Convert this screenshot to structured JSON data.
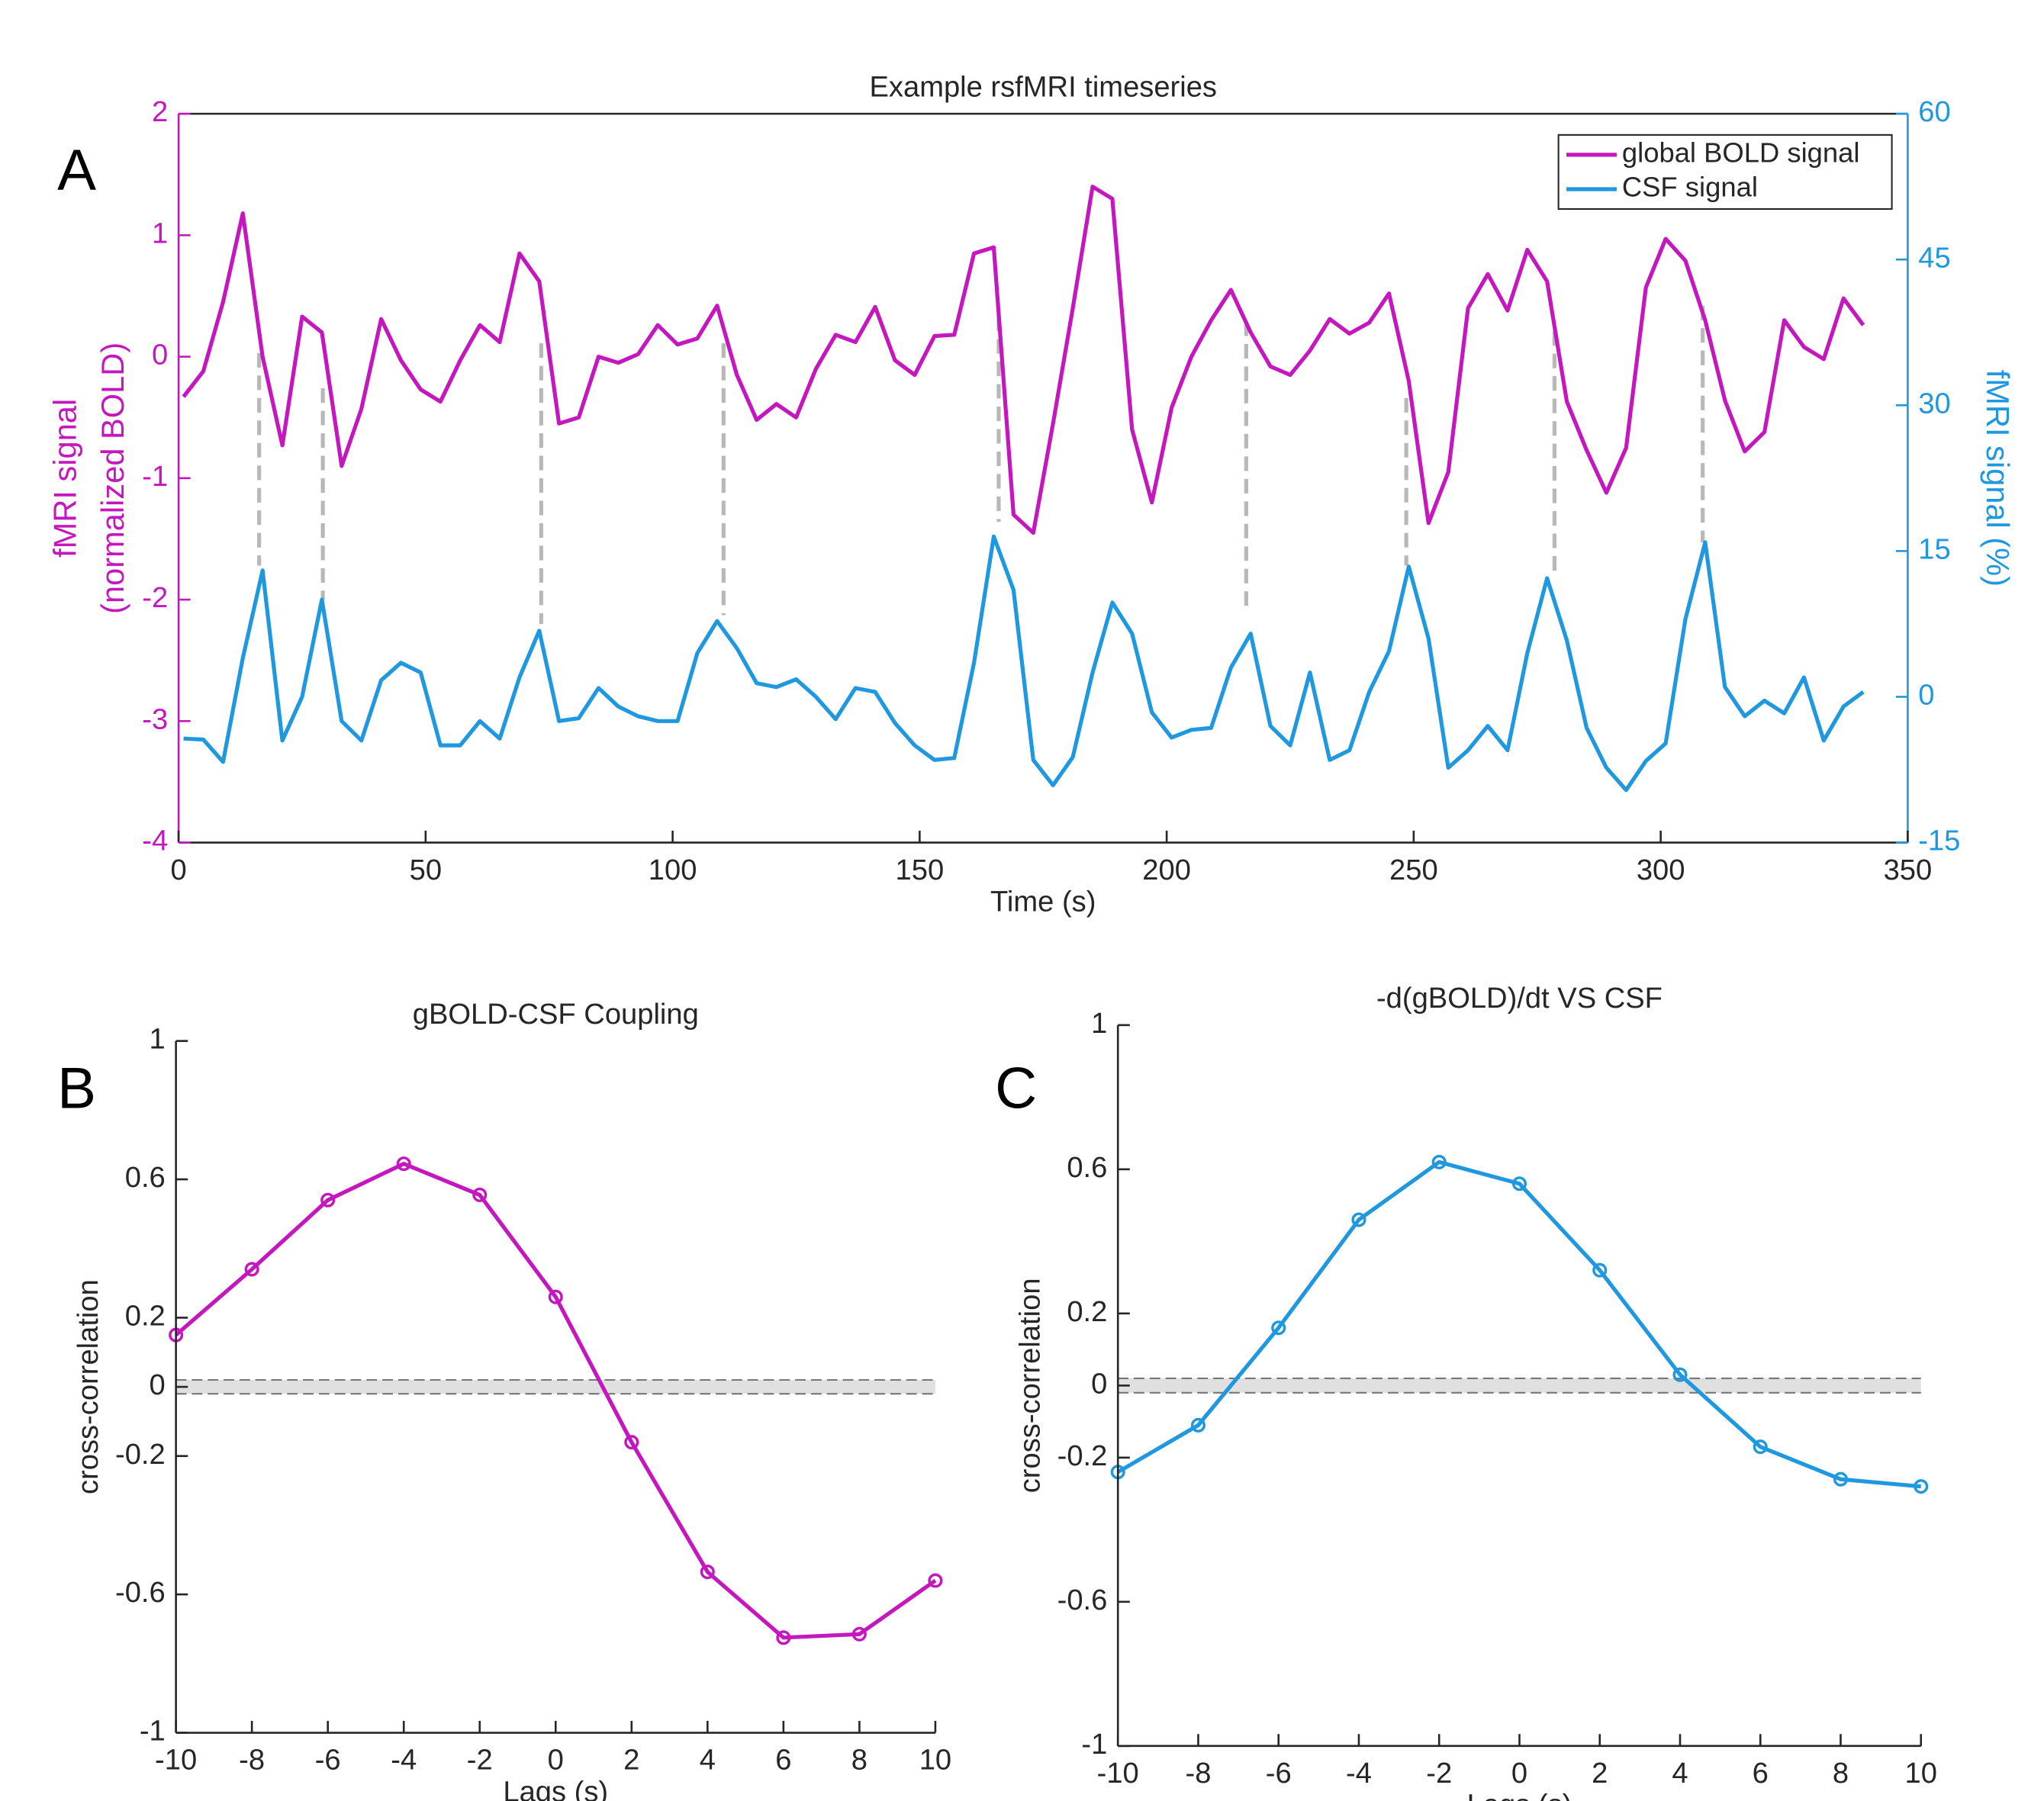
{
  "chart_data": [
    {
      "type": "line",
      "panel_label": "A",
      "title": "Example rsfMRI timeseries",
      "xlabel": "Time (s)",
      "ylabel": [
        "fMRI signal",
        "(normalized BOLD)"
      ],
      "y2label": "fMRI signal (%)",
      "x": [
        1,
        5,
        9,
        13,
        17,
        21,
        25,
        29,
        33,
        37,
        41,
        45,
        49,
        53,
        57,
        61,
        65,
        69,
        73,
        77,
        81,
        85,
        89,
        93,
        97,
        101,
        105,
        109,
        113,
        117,
        121,
        125,
        129,
        133,
        137,
        141,
        145,
        149,
        153,
        157,
        161,
        165,
        169,
        173,
        177,
        181,
        185,
        189,
        193,
        197,
        201,
        205,
        209,
        213,
        217,
        221,
        225,
        229,
        233,
        237,
        241,
        245,
        249,
        253,
        257,
        261,
        265,
        269,
        273,
        277,
        281,
        285,
        289,
        293,
        297,
        301,
        305,
        309,
        313,
        317,
        321,
        325,
        329,
        333,
        337,
        341
      ],
      "series": [
        {
          "name": "global BOLD signal",
          "color": "#c418be",
          "axis": "y",
          "values": [
            -0.33,
            -0.12,
            0.45,
            1.18,
            0,
            -0.73,
            0.33,
            0.2,
            -0.9,
            -0.43,
            0.31,
            -0.03,
            -0.27,
            -0.37,
            -0.03,
            0.26,
            0.12,
            0.85,
            0.62,
            -0.55,
            -0.5,
            0,
            -0.05,
            0.02,
            0.26,
            0.1,
            0.15,
            0.42,
            -0.15,
            -0.52,
            -0.39,
            -0.5,
            -0.1,
            0.18,
            0.12,
            0.41,
            -0.03,
            -0.15,
            0.17,
            0.18,
            0.85,
            0.9,
            -1.3,
            -1.45,
            -0.55,
            0.4,
            1.4,
            1.3,
            -0.6,
            -1.2,
            -0.42,
            0,
            0.3,
            0.55,
            0.2,
            -0.08,
            -0.15,
            0.05,
            0.31,
            0.19,
            0.28,
            0.52,
            -0.2,
            -1.37,
            -0.95,
            0.4,
            0.68,
            0.38,
            0.88,
            0.62,
            -0.37,
            -0.77,
            -1.12,
            -0.75,
            0.57,
            0.97,
            0.79,
            0.3,
            -0.36,
            -0.78,
            -0.62,
            0.3,
            0.08,
            -0.02,
            0.48,
            0.26
          ]
        },
        {
          "name": "CSF signal",
          "color": "#1f98e0",
          "axis": "y2",
          "values": [
            -4.3,
            -4.4,
            -6.7,
            4,
            13,
            -4.5,
            0,
            10,
            -2.5,
            -4.5,
            1.7,
            3.5,
            2.5,
            -5,
            -5,
            -2.5,
            -4.3,
            2,
            6.8,
            -2.5,
            -2.2,
            0.9,
            -1,
            -2,
            -2.5,
            -2.5,
            4.5,
            7.8,
            5,
            1.4,
            1,
            1.8,
            0,
            -2.3,
            0.9,
            0.5,
            -2.7,
            -5,
            -6.5,
            -6.3,
            3.5,
            16.5,
            11,
            -6.5,
            -9.1,
            -6.2,
            2.5,
            9.7,
            6.5,
            -1.6,
            -4.2,
            -3.4,
            -3.2,
            3,
            6.5,
            -3,
            -5,
            2.5,
            -6.5,
            -5.5,
            0.5,
            4.7,
            13.4,
            6,
            -7.3,
            -5.5,
            -3,
            -5.5,
            4.5,
            12.2,
            5.8,
            -3.2,
            -7.3,
            -9.6,
            -6.6,
            -4.8,
            8,
            15.9,
            1,
            -2,
            -0.4,
            -1.7,
            2,
            -4.5,
            -1,
            0.5
          ]
        }
      ],
      "xlim": [
        0,
        350
      ],
      "xticks": [
        0,
        50,
        100,
        150,
        200,
        250,
        300,
        350
      ],
      "ylim": [
        -4,
        2
      ],
      "yticks": [
        -4,
        -3,
        -2,
        -1,
        0,
        1,
        2
      ],
      "y2lim": [
        -15,
        60
      ],
      "y2ticks": [
        -15,
        0,
        15,
        30,
        45,
        60
      ],
      "legend": "upper right",
      "dashed_lines": [
        {
          "x": 16.3,
          "y": 0.03,
          "y2": 13.5
        },
        {
          "x": 29.2,
          "y": -0.26,
          "y2": 10
        },
        {
          "x": 73.4,
          "y": 0.11,
          "y2": 7.5
        },
        {
          "x": 110.3,
          "y": 0.11,
          "y2": 8.4
        },
        {
          "x": 166,
          "y": 0.33,
          "y2": 18
        },
        {
          "x": 216.1,
          "y": 0.29,
          "y2": 8.8
        },
        {
          "x": 248.5,
          "y": -0.34,
          "y2": 13.5
        },
        {
          "x": 278.5,
          "y": 0.21,
          "y2": 12.4
        },
        {
          "x": 308.5,
          "y": 0.42,
          "y2": 15.9
        }
      ]
    },
    {
      "type": "line",
      "panel_label": "B",
      "title": "gBOLD-CSF Coupling",
      "xlabel": "Lags (s)",
      "ylabel": "cross-correlation",
      "x": [
        -10,
        -8,
        -6,
        -4,
        -2,
        0,
        2,
        4,
        6,
        8,
        10
      ],
      "series": [
        {
          "color": "#c418be",
          "values": [
            0.15,
            0.34,
            0.54,
            0.645,
            0.555,
            0.26,
            -0.16,
            -0.535,
            -0.725,
            -0.715,
            -0.56
          ]
        }
      ],
      "markers": "circle",
      "xlim": [
        -10,
        10
      ],
      "xticks": [
        -10,
        -8,
        -6,
        -4,
        -2,
        0,
        2,
        4,
        6,
        8,
        10
      ],
      "ylim": [
        -1,
        1
      ],
      "yticks": [
        -1,
        -0.6,
        -0.2,
        0,
        0.2,
        0.6,
        1
      ],
      "band": {
        "lower": -0.02,
        "upper": 0.02,
        "color": "#e0e0e0"
      }
    },
    {
      "type": "line",
      "panel_label": "C",
      "title": "-d(gBOLD)/dt VS CSF",
      "xlabel": "Lags (s)",
      "ylabel": "cross-correlation",
      "x": [
        -10,
        -8,
        -6,
        -4,
        -2,
        0,
        2,
        4,
        6,
        8,
        10
      ],
      "series": [
        {
          "color": "#1f98e0",
          "values": [
            -0.24,
            -0.11,
            0.16,
            0.46,
            0.62,
            0.56,
            0.32,
            0.03,
            -0.17,
            -0.26,
            -0.28
          ]
        }
      ],
      "markers": "circle",
      "xlim": [
        -10,
        10
      ],
      "xticks": [
        -10,
        -8,
        -6,
        -4,
        -2,
        0,
        2,
        4,
        6,
        8,
        10
      ],
      "ylim": [
        -1,
        1
      ],
      "yticks": [
        -1,
        -0.6,
        -0.2,
        0,
        0.2,
        0.6,
        1
      ],
      "band": {
        "lower": -0.02,
        "upper": 0.02,
        "color": "#e0e0e0"
      }
    }
  ]
}
